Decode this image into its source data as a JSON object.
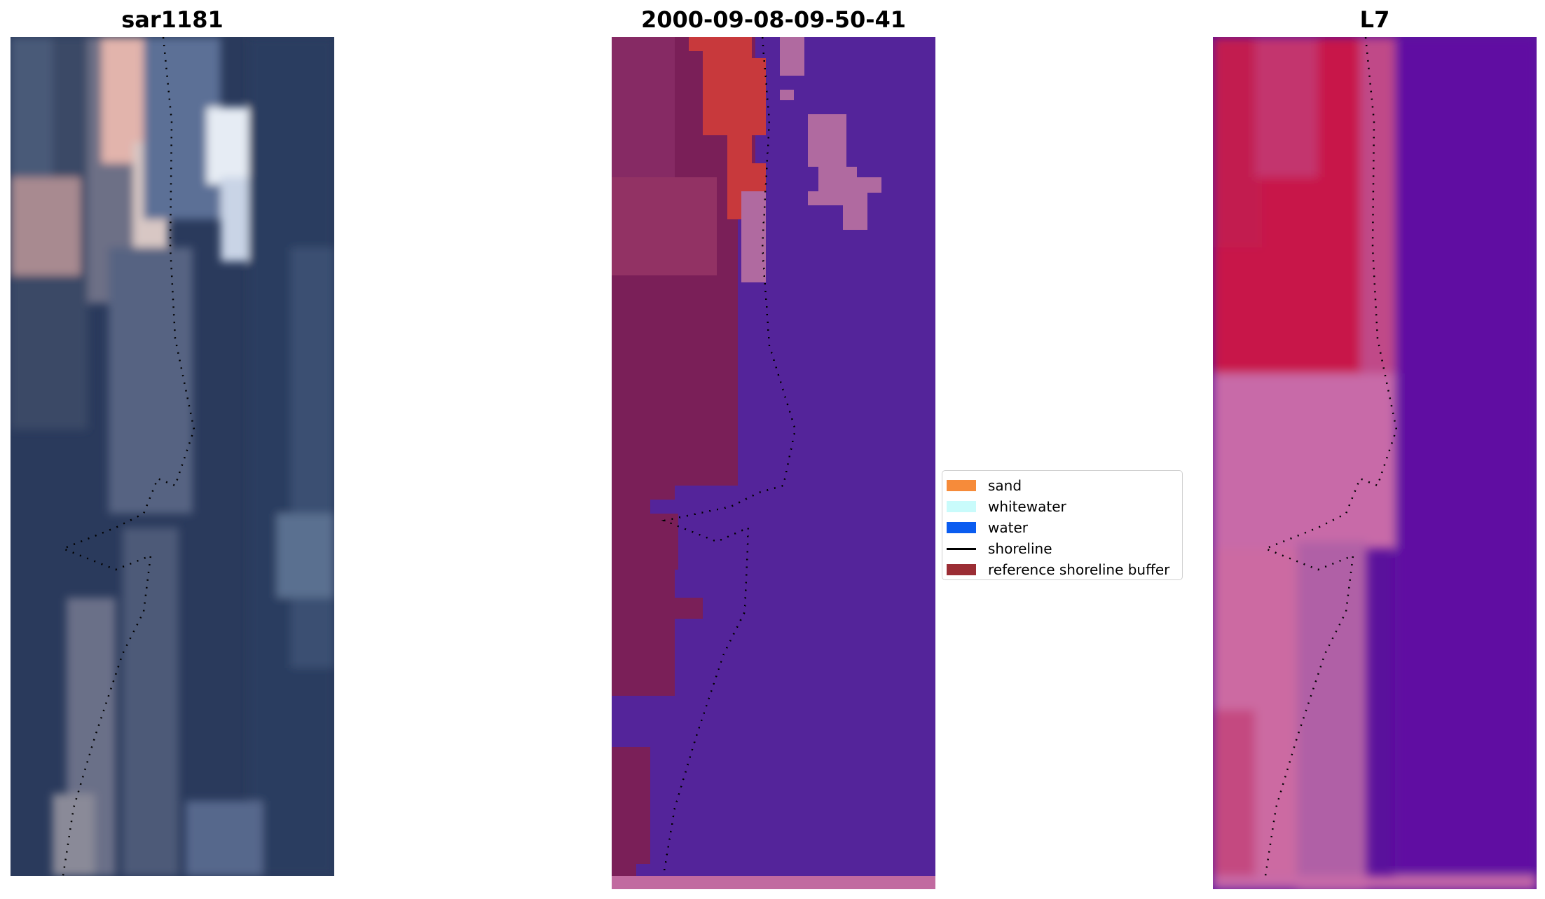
{
  "panels": [
    {
      "title": "sar1181"
    },
    {
      "title": "2000-09-08-09-50-41"
    },
    {
      "title": "L7"
    }
  ],
  "legend": {
    "items": [
      {
        "label": "sand",
        "color": "#f68b3a",
        "kind": "patch"
      },
      {
        "label": "whitewater",
        "color": "#c9fbfb",
        "kind": "patch"
      },
      {
        "label": "water",
        "color": "#0a5cf0",
        "kind": "patch"
      },
      {
        "label": "shoreline",
        "color": "#000000",
        "kind": "line"
      },
      {
        "label": "reference shoreline buffer",
        "color": "#9b2d34",
        "kind": "patch"
      }
    ]
  },
  "colors": {
    "rgb_dark_water": "#2a3a5c",
    "classified_water_purple": "#54249a",
    "classified_land_maroon": "#7a1f58",
    "classified_buffer_red": "#c8393c",
    "classified_light_pink": "#b06aa0",
    "ndwi_land_red": "#c8194a",
    "ndwi_water_purple": "#5a119c",
    "ndwi_transition_pink": "#c86aa8"
  }
}
